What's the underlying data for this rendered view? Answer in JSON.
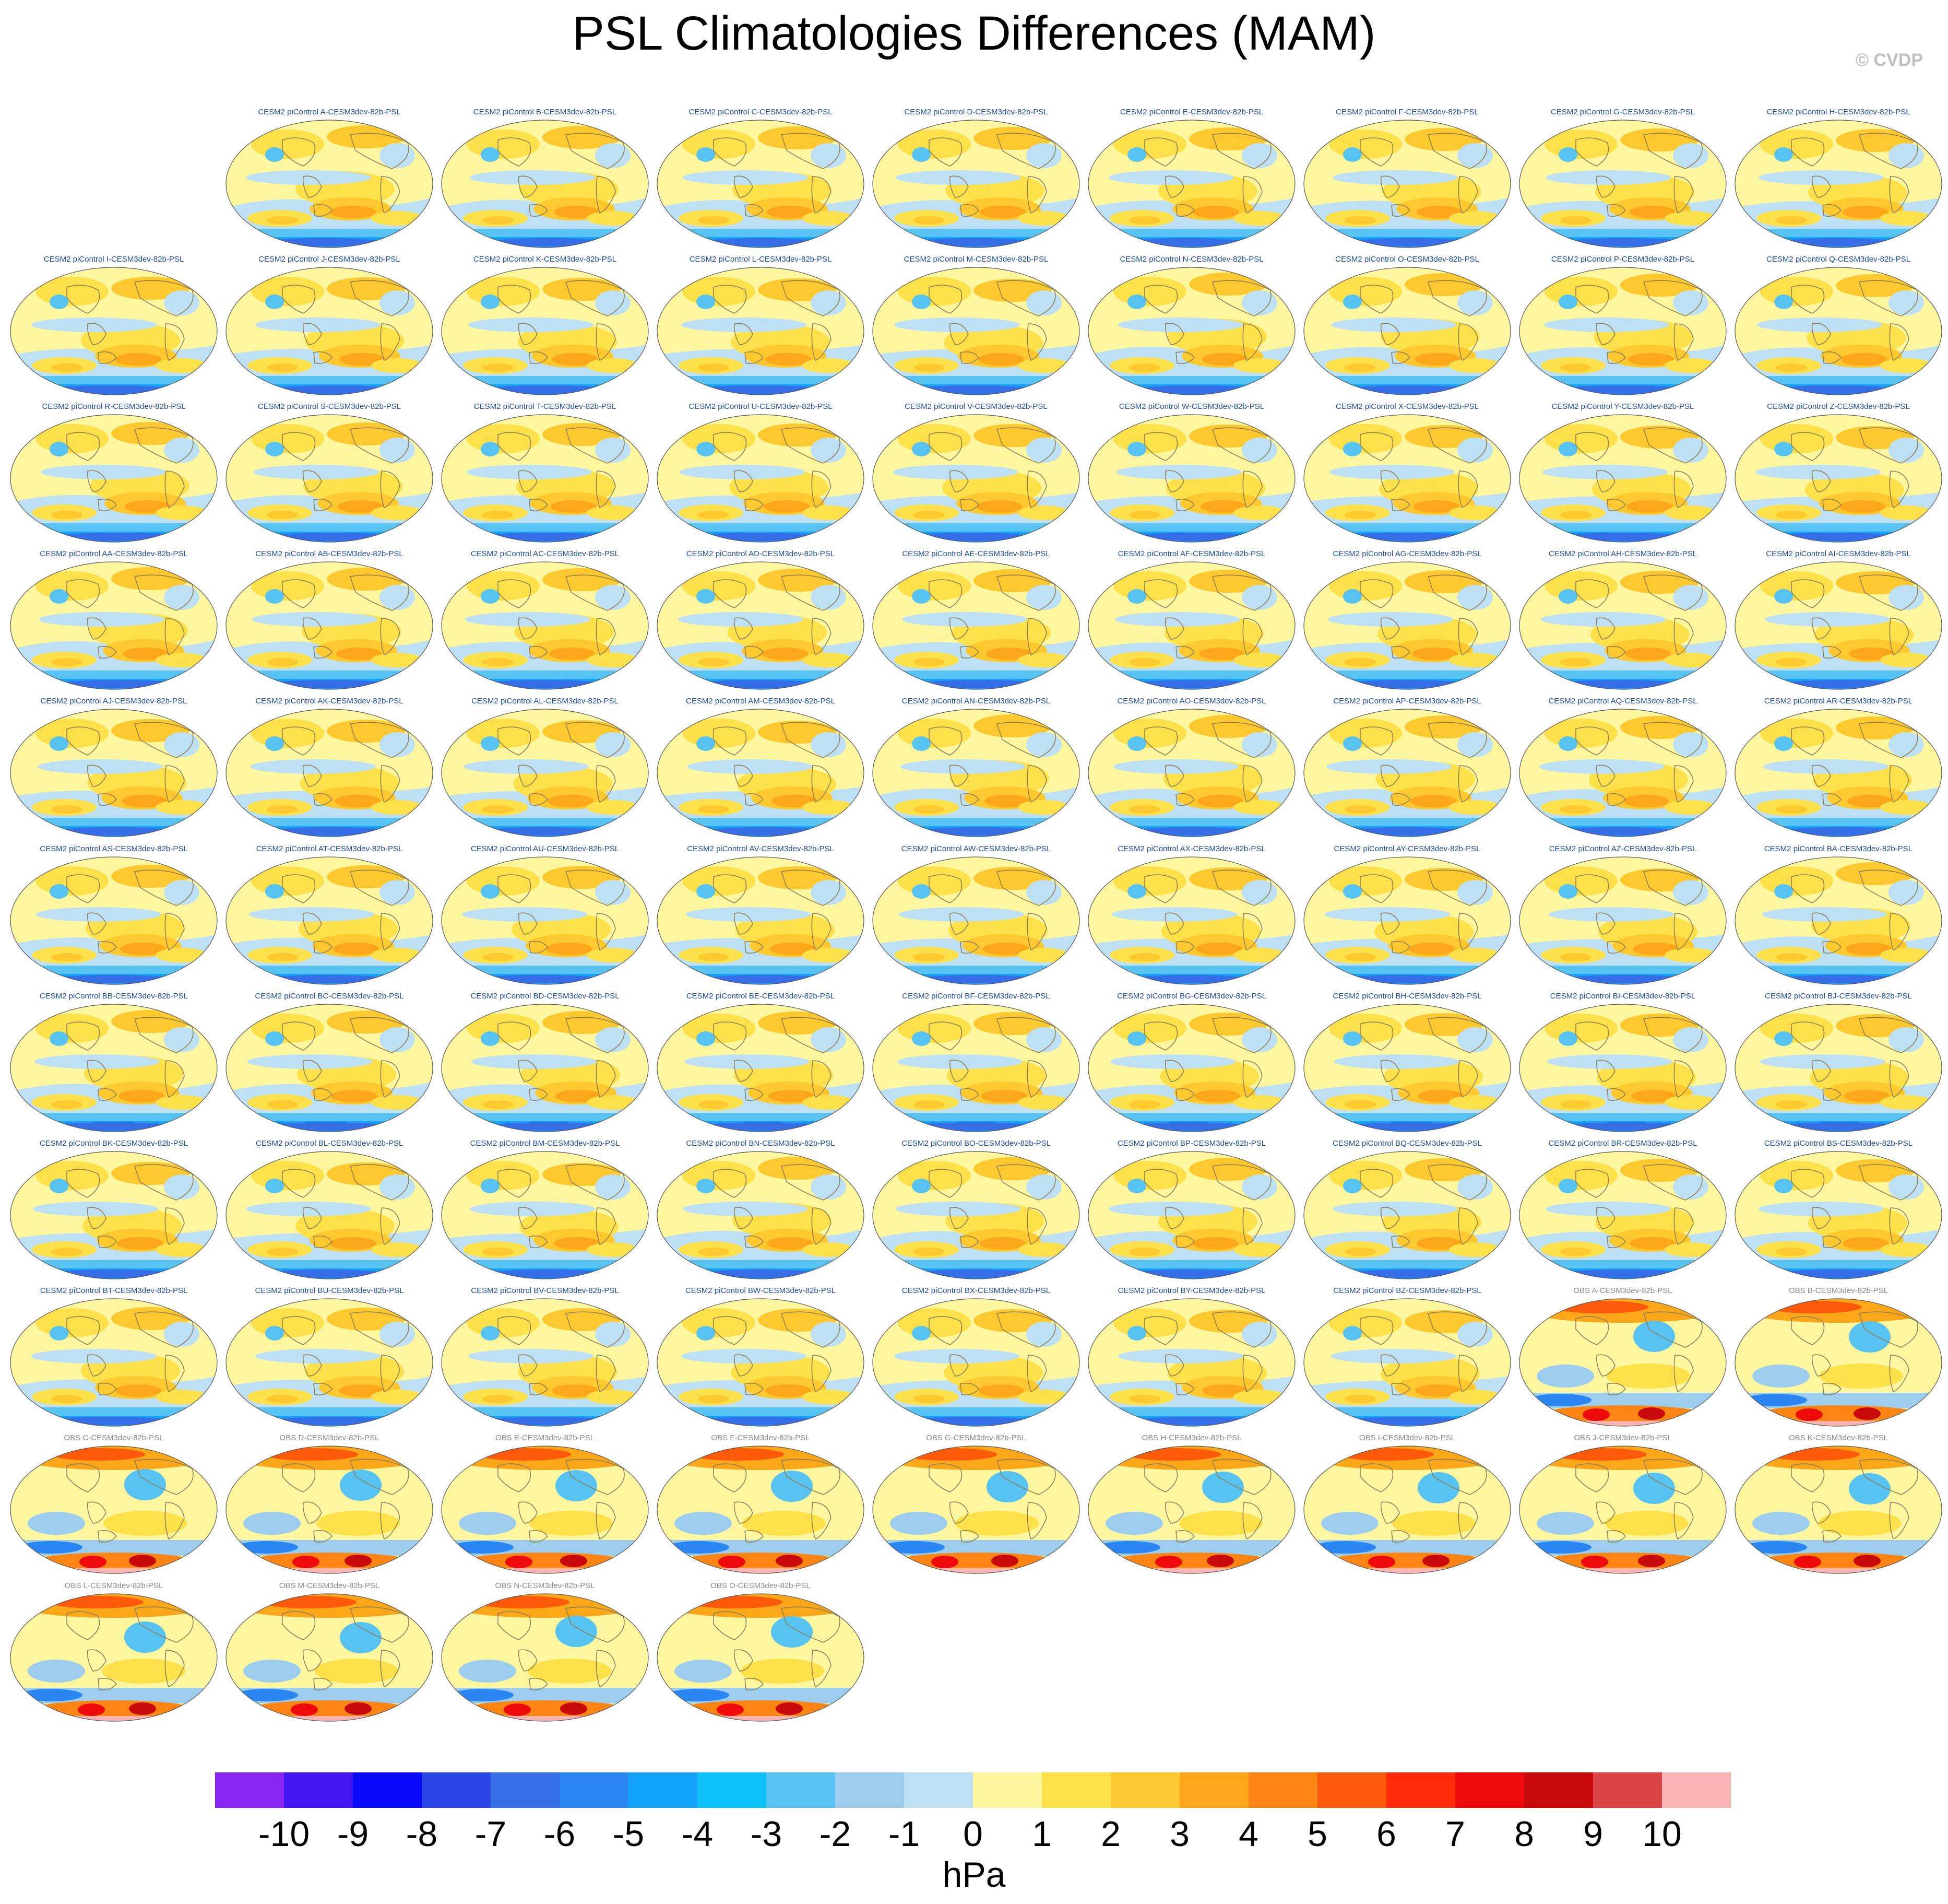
{
  "title": "PSL Climatologies Differences (MAM)",
  "credit": "© CVDP",
  "colors": {
    "model_title": "#1f4e9e",
    "obs_title": "#8a8a8a",
    "ocean": "#bddff5",
    "coast": "#8a7d55"
  },
  "panels": [
    {
      "label": "CESM2 piControl A-CESM3dev-82b-PSL",
      "kind": "model"
    },
    {
      "label": "CESM2 piControl B-CESM3dev-82b-PSL",
      "kind": "model"
    },
    {
      "label": "CESM2 piControl C-CESM3dev-82b-PSL",
      "kind": "model"
    },
    {
      "label": "CESM2 piControl D-CESM3dev-82b-PSL",
      "kind": "model"
    },
    {
      "label": "CESM2 piControl E-CESM3dev-82b-PSL",
      "kind": "model"
    },
    {
      "label": "CESM2 piControl F-CESM3dev-82b-PSL",
      "kind": "model"
    },
    {
      "label": "CESM2 piControl G-CESM3dev-82b-PSL",
      "kind": "model"
    },
    {
      "label": "CESM2 piControl H-CESM3dev-82b-PSL",
      "kind": "model"
    },
    {
      "label": "CESM2 piControl I-CESM3dev-82b-PSL",
      "kind": "model"
    },
    {
      "label": "CESM2 piControl J-CESM3dev-82b-PSL",
      "kind": "model"
    },
    {
      "label": "CESM2 piControl K-CESM3dev-82b-PSL",
      "kind": "model"
    },
    {
      "label": "CESM2 piControl L-CESM3dev-82b-PSL",
      "kind": "model"
    },
    {
      "label": "CESM2 piControl M-CESM3dev-82b-PSL",
      "kind": "model"
    },
    {
      "label": "CESM2 piControl N-CESM3dev-82b-PSL",
      "kind": "model"
    },
    {
      "label": "CESM2 piControl O-CESM3dev-82b-PSL",
      "kind": "model"
    },
    {
      "label": "CESM2 piControl P-CESM3dev-82b-PSL",
      "kind": "model"
    },
    {
      "label": "CESM2 piControl Q-CESM3dev-82b-PSL",
      "kind": "model"
    },
    {
      "label": "CESM2 piControl R-CESM3dev-82b-PSL",
      "kind": "model"
    },
    {
      "label": "CESM2 piControl S-CESM3dev-82b-PSL",
      "kind": "model"
    },
    {
      "label": "CESM2 piControl T-CESM3dev-82b-PSL",
      "kind": "model"
    },
    {
      "label": "CESM2 piControl U-CESM3dev-82b-PSL",
      "kind": "model"
    },
    {
      "label": "CESM2 piControl V-CESM3dev-82b-PSL",
      "kind": "model"
    },
    {
      "label": "CESM2 piControl W-CESM3dev-82b-PSL",
      "kind": "model"
    },
    {
      "label": "CESM2 piControl X-CESM3dev-82b-PSL",
      "kind": "model"
    },
    {
      "label": "CESM2 piControl Y-CESM3dev-82b-PSL",
      "kind": "model"
    },
    {
      "label": "CESM2 piControl Z-CESM3dev-82b-PSL",
      "kind": "model"
    },
    {
      "label": "CESM2 piControl AA-CESM3dev-82b-PSL",
      "kind": "model"
    },
    {
      "label": "CESM2 piControl AB-CESM3dev-82b-PSL",
      "kind": "model"
    },
    {
      "label": "CESM2 piControl AC-CESM3dev-82b-PSL",
      "kind": "model"
    },
    {
      "label": "CESM2 piControl AD-CESM3dev-82b-PSL",
      "kind": "model"
    },
    {
      "label": "CESM2 piControl AE-CESM3dev-82b-PSL",
      "kind": "model"
    },
    {
      "label": "CESM2 piControl AF-CESM3dev-82b-PSL",
      "kind": "model"
    },
    {
      "label": "CESM2 piControl AG-CESM3dev-82b-PSL",
      "kind": "model"
    },
    {
      "label": "CESM2 piControl AH-CESM3dev-82b-PSL",
      "kind": "model"
    },
    {
      "label": "CESM2 piControl AI-CESM3dev-82b-PSL",
      "kind": "model"
    },
    {
      "label": "CESM2 piControl AJ-CESM3dev-82b-PSL",
      "kind": "model"
    },
    {
      "label": "CESM2 piControl AK-CESM3dev-82b-PSL",
      "kind": "model"
    },
    {
      "label": "CESM2 piControl AL-CESM3dev-82b-PSL",
      "kind": "model"
    },
    {
      "label": "CESM2 piControl AM-CESM3dev-82b-PSL",
      "kind": "model"
    },
    {
      "label": "CESM2 piControl AN-CESM3dev-82b-PSL",
      "kind": "model"
    },
    {
      "label": "CESM2 piControl AO-CESM3dev-82b-PSL",
      "kind": "model"
    },
    {
      "label": "CESM2 piControl AP-CESM3dev-82b-PSL",
      "kind": "model"
    },
    {
      "label": "CESM2 piControl AQ-CESM3dev-82b-PSL",
      "kind": "model"
    },
    {
      "label": "CESM2 piControl AR-CESM3dev-82b-PSL",
      "kind": "model"
    },
    {
      "label": "CESM2 piControl AS-CESM3dev-82b-PSL",
      "kind": "model"
    },
    {
      "label": "CESM2 piControl AT-CESM3dev-82b-PSL",
      "kind": "model"
    },
    {
      "label": "CESM2 piControl AU-CESM3dev-82b-PSL",
      "kind": "model"
    },
    {
      "label": "CESM2 piControl AV-CESM3dev-82b-PSL",
      "kind": "model"
    },
    {
      "label": "CESM2 piControl AW-CESM3dev-82b-PSL",
      "kind": "model"
    },
    {
      "label": "CESM2 piControl AX-CESM3dev-82b-PSL",
      "kind": "model"
    },
    {
      "label": "CESM2 piControl AY-CESM3dev-82b-PSL",
      "kind": "model"
    },
    {
      "label": "CESM2 piControl AZ-CESM3dev-82b-PSL",
      "kind": "model"
    },
    {
      "label": "CESM2 piControl BA-CESM3dev-82b-PSL",
      "kind": "model"
    },
    {
      "label": "CESM2 piControl BB-CESM3dev-82b-PSL",
      "kind": "model"
    },
    {
      "label": "CESM2 piControl BC-CESM3dev-82b-PSL",
      "kind": "model"
    },
    {
      "label": "CESM2 piControl BD-CESM3dev-82b-PSL",
      "kind": "model"
    },
    {
      "label": "CESM2 piControl BE-CESM3dev-82b-PSL",
      "kind": "model"
    },
    {
      "label": "CESM2 piControl BF-CESM3dev-82b-PSL",
      "kind": "model"
    },
    {
      "label": "CESM2 piControl BG-CESM3dev-82b-PSL",
      "kind": "model"
    },
    {
      "label": "CESM2 piControl BH-CESM3dev-82b-PSL",
      "kind": "model"
    },
    {
      "label": "CESM2 piControl BI-CESM3dev-82b-PSL",
      "kind": "model"
    },
    {
      "label": "CESM2 piControl BJ-CESM3dev-82b-PSL",
      "kind": "model"
    },
    {
      "label": "CESM2 piControl BK-CESM3dev-82b-PSL",
      "kind": "model"
    },
    {
      "label": "CESM2 piControl BL-CESM3dev-82b-PSL",
      "kind": "model"
    },
    {
      "label": "CESM2 piControl BM-CESM3dev-82b-PSL",
      "kind": "model"
    },
    {
      "label": "CESM2 piControl BN-CESM3dev-82b-PSL",
      "kind": "model"
    },
    {
      "label": "CESM2 piControl BO-CESM3dev-82b-PSL",
      "kind": "model"
    },
    {
      "label": "CESM2 piControl BP-CESM3dev-82b-PSL",
      "kind": "model"
    },
    {
      "label": "CESM2 piControl BQ-CESM3dev-82b-PSL",
      "kind": "model"
    },
    {
      "label": "CESM2 piControl BR-CESM3dev-82b-PSL",
      "kind": "model"
    },
    {
      "label": "CESM2 piControl BS-CESM3dev-82b-PSL",
      "kind": "model"
    },
    {
      "label": "CESM2 piControl BT-CESM3dev-82b-PSL",
      "kind": "model"
    },
    {
      "label": "CESM2 piControl BU-CESM3dev-82b-PSL",
      "kind": "model"
    },
    {
      "label": "CESM2 piControl BV-CESM3dev-82b-PSL",
      "kind": "model"
    },
    {
      "label": "CESM2 piControl BW-CESM3dev-82b-PSL",
      "kind": "model"
    },
    {
      "label": "CESM2 piControl BX-CESM3dev-82b-PSL",
      "kind": "model"
    },
    {
      "label": "CESM2 piControl BY-CESM3dev-82b-PSL",
      "kind": "model"
    },
    {
      "label": "CESM2 piControl BZ-CESM3dev-82b-PSL",
      "kind": "model"
    },
    {
      "label": "OBS A-CESM3dev-82b-PSL",
      "kind": "obs"
    },
    {
      "label": "OBS B-CESM3dev-82b-PSL",
      "kind": "obs"
    },
    {
      "label": "OBS C-CESM3dev-82b-PSL",
      "kind": "obs"
    },
    {
      "label": "OBS D-CESM3dev-82b-PSL",
      "kind": "obs"
    },
    {
      "label": "OBS E-CESM3dev-82b-PSL",
      "kind": "obs"
    },
    {
      "label": "OBS F-CESM3dev-82b-PSL",
      "kind": "obs"
    },
    {
      "label": "OBS G-CESM3dev-82b-PSL",
      "kind": "obs"
    },
    {
      "label": "OBS H-CESM3dev-82b-PSL",
      "kind": "obs"
    },
    {
      "label": "OBS I-CESM3dev-82b-PSL",
      "kind": "obs"
    },
    {
      "label": "OBS J-CESM3dev-82b-PSL",
      "kind": "obs"
    },
    {
      "label": "OBS K-CESM3dev-82b-PSL",
      "kind": "obs"
    },
    {
      "label": "OBS L-CESM3dev-82b-PSL",
      "kind": "obs"
    },
    {
      "label": "OBS M-CESM3dev-82b-PSL",
      "kind": "obs"
    },
    {
      "label": "OBS N-CESM3dev-82b-PSL",
      "kind": "obs"
    },
    {
      "label": "OBS O-CESM3dev-82b-PSL",
      "kind": "obs"
    }
  ],
  "colorbar": {
    "unit": "hPa",
    "labels": [
      "-10",
      "-9",
      "-8",
      "-7",
      "-6",
      "-5",
      "-4",
      "-3",
      "-2",
      "-1",
      "0",
      "1",
      "2",
      "3",
      "4",
      "5",
      "6",
      "7",
      "8",
      "9",
      "10"
    ],
    "colors": [
      "#8a24f0",
      "#4216f0",
      "#0a0afa",
      "#2a46e6",
      "#356ee6",
      "#2a86f2",
      "#15a2fa",
      "#0cc2f8",
      "#58c2f2",
      "#9ccdec",
      "#bde0f5",
      "#fef7a0",
      "#fee04a",
      "#fec82e",
      "#fea61a",
      "#fe8414",
      "#fe5a0a",
      "#fe2a0a",
      "#ee0a0a",
      "#c80a0a",
      "#dc4446",
      "#fab4b4"
    ]
  }
}
